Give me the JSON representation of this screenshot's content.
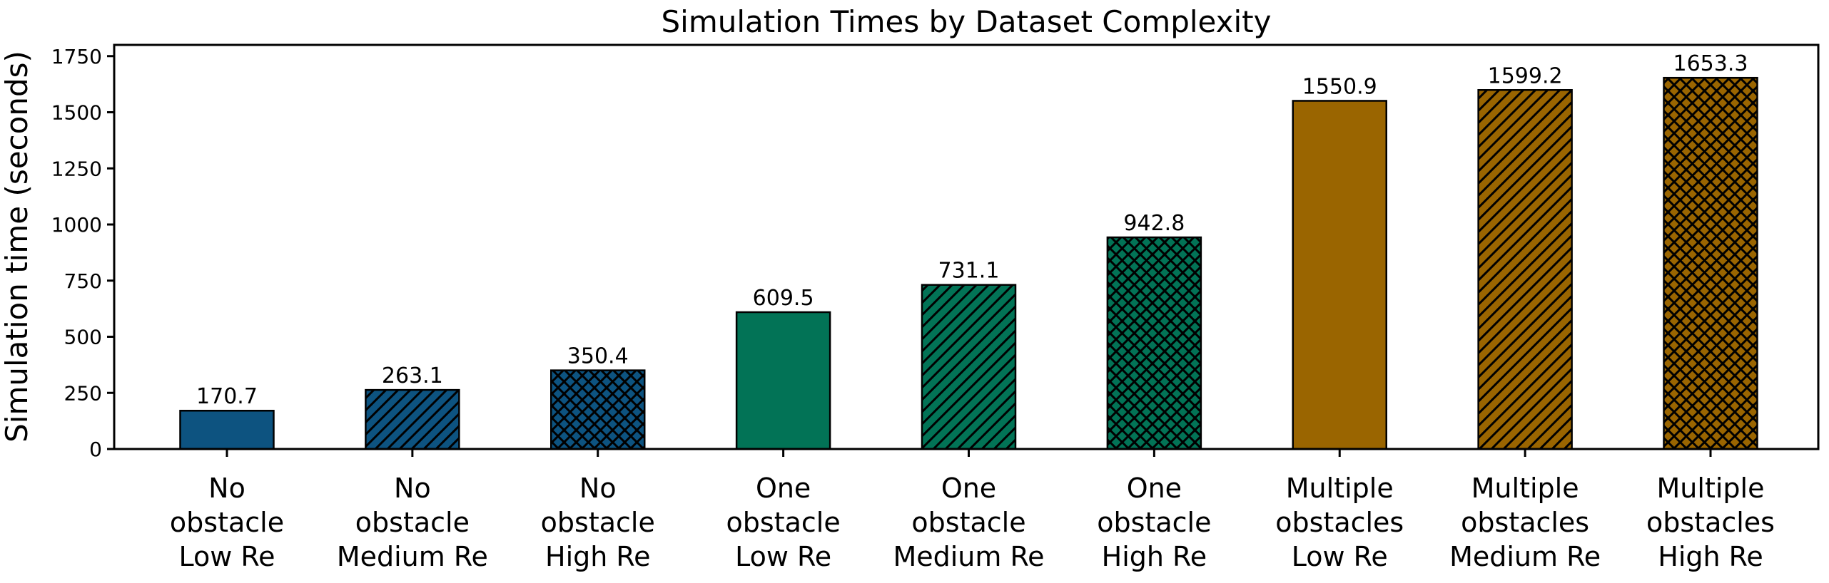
{
  "figure": {
    "background": "#ffffff",
    "text_color": "#000000",
    "spine_color": "#000000"
  },
  "chart_data": {
    "type": "bar",
    "title": "Simulation Times by Dataset Complexity",
    "ylabel": "Simulation time (seconds)",
    "xlabel": "",
    "categories": [
      "No obstacle Low Re",
      "No obstacle Medium Re",
      "No obstacle High Re",
      "One obstacle Low Re",
      "One obstacle Medium Re",
      "One obstacle High Re",
      "Multiple obstacles Low Re",
      "Multiple obstacles Medium Re",
      "Multiple obstacles High Re"
    ],
    "category_lines": [
      [
        "No",
        "obstacle",
        "Low Re"
      ],
      [
        "No",
        "obstacle",
        "Medium Re"
      ],
      [
        "No",
        "obstacle",
        "High Re"
      ],
      [
        "One",
        "obstacle",
        "Low Re"
      ],
      [
        "One",
        "obstacle",
        "Medium Re"
      ],
      [
        "One",
        "obstacle",
        "High Re"
      ],
      [
        "Multiple",
        "obstacles",
        "Low Re"
      ],
      [
        "Multiple",
        "obstacles",
        "Medium Re"
      ],
      [
        "Multiple",
        "obstacles",
        "High Re"
      ]
    ],
    "values": [
      170.7,
      263.1,
      350.4,
      609.5,
      731.1,
      942.8,
      1550.9,
      1599.2,
      1653.3
    ],
    "value_labels": [
      "170.7",
      "263.1",
      "350.4",
      "609.5",
      "731.1",
      "942.8",
      "1550.9",
      "1599.2",
      "1653.3"
    ],
    "bar_colors": [
      "#0d5380",
      "#0d5380",
      "#0d5380",
      "#027356",
      "#027356",
      "#027356",
      "#9a6500",
      "#9a6500",
      "#9a6500"
    ],
    "bar_hatches": [
      "solid",
      "diagonal",
      "crosshatch",
      "solid",
      "diagonal",
      "crosshatch",
      "solid",
      "diagonal",
      "crosshatch"
    ],
    "bar_edge_color": "#000000",
    "group_colors": {
      "no_obstacle": "#0d5380",
      "one_obstacle": "#027356",
      "multiple_obstacles": "#9a6500"
    },
    "yticks": [
      0,
      250,
      500,
      750,
      1000,
      1250,
      1500,
      1750
    ],
    "ylim": [
      0,
      1800
    ],
    "grid": false,
    "legend_position": "none"
  }
}
